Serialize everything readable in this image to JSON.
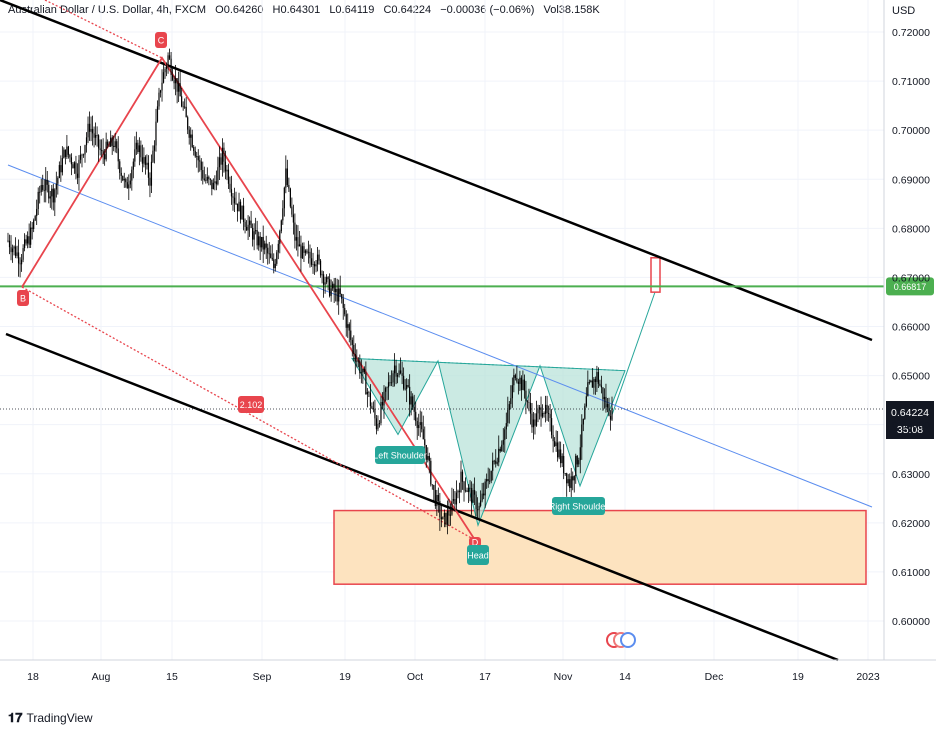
{
  "header": {
    "symbol": "Australian Dollar / U.S. Dollar, 4h, FXCM",
    "open": "O0.64260",
    "high": "H0.64301",
    "low": "L0.64119",
    "close": "C0.64224",
    "change": "−0.00036 (−0.06%)",
    "volume": "Vol38.158K"
  },
  "footer": {
    "brand": "TradingView"
  },
  "colors": {
    "up": "#26a69a",
    "down": "#ef5350",
    "candle": "#000000",
    "channel": "#000000",
    "midline": "#5b8def",
    "abcd": "#e8454d",
    "pattern_fill": "#b9e3da",
    "pattern_stroke": "#26a69a",
    "support_line": "#4caf50",
    "zone_fill": "#fde3bf",
    "zone_stroke": "#e8454d"
  },
  "chart_data": {
    "type": "candlestick",
    "currency": "USD",
    "y_tick_labels": [
      "0.72000",
      "0.71000",
      "0.70000",
      "0.69000",
      "0.68000",
      "0.67000",
      "0.66000",
      "0.65000",
      "0.64000",
      "0.63000",
      "0.62000",
      "0.61000",
      "0.60000"
    ],
    "y_ticks": [
      0.72,
      0.71,
      0.7,
      0.69,
      0.68,
      0.67,
      0.66,
      0.65,
      0.64,
      0.63,
      0.62,
      0.61,
      0.6
    ],
    "x_tick_labels": [
      "18",
      "Aug",
      "15",
      "Sep",
      "19",
      "Oct",
      "17",
      "Nov",
      "14",
      "Dec",
      "19",
      "2023"
    ],
    "last_price": "0.64224",
    "countdown": "35:08",
    "support_price": "0.66817",
    "ratio_label": "2.102",
    "pivot_labels": {
      "b": "B",
      "c": "C",
      "d": "D"
    },
    "pattern_labels": {
      "left": "Left Shoulder",
      "head": "Head",
      "right": "Right Shoulder"
    },
    "price_path": [
      [
        0,
        0.6775
      ],
      [
        8,
        0.674
      ],
      [
        16,
        0.6795
      ],
      [
        22,
        0.689
      ],
      [
        30,
        0.687
      ],
      [
        38,
        0.696
      ],
      [
        46,
        0.692
      ],
      [
        54,
        0.701
      ],
      [
        62,
        0.695
      ],
      [
        70,
        0.6975
      ],
      [
        78,
        0.688
      ],
      [
        86,
        0.697
      ],
      [
        94,
        0.69
      ],
      [
        101,
        0.709
      ],
      [
        106,
        0.715
      ],
      [
        112,
        0.709
      ],
      [
        118,
        0.702
      ],
      [
        124,
        0.696
      ],
      [
        130,
        0.69
      ],
      [
        136,
        0.6885
      ],
      [
        142,
        0.695
      ],
      [
        150,
        0.686
      ],
      [
        158,
        0.681
      ],
      [
        164,
        0.678
      ],
      [
        170,
        0.676
      ],
      [
        176,
        0.672
      ],
      [
        180,
        0.68
      ],
      [
        184,
        0.691
      ],
      [
        190,
        0.678
      ],
      [
        196,
        0.674
      ],
      [
        204,
        0.674
      ],
      [
        212,
        0.668
      ],
      [
        220,
        0.666
      ],
      [
        228,
        0.656
      ],
      [
        236,
        0.649
      ],
      [
        244,
        0.64
      ],
      [
        250,
        0.646
      ],
      [
        256,
        0.652
      ],
      [
        262,
        0.649
      ],
      [
        270,
        0.642
      ],
      [
        276,
        0.636
      ],
      [
        282,
        0.626
      ],
      [
        288,
        0.62
      ],
      [
        294,
        0.623
      ],
      [
        300,
        0.629
      ],
      [
        306,
        0.626
      ],
      [
        312,
        0.623
      ],
      [
        318,
        0.629
      ],
      [
        324,
        0.634
      ],
      [
        330,
        0.64
      ],
      [
        336,
        0.651
      ],
      [
        342,
        0.647
      ],
      [
        348,
        0.64
      ],
      [
        354,
        0.644
      ],
      [
        360,
        0.639
      ],
      [
        366,
        0.633
      ],
      [
        372,
        0.628
      ],
      [
        378,
        0.634
      ],
      [
        384,
        0.647
      ],
      [
        390,
        0.65
      ],
      [
        396,
        0.644
      ],
      [
        400,
        0.6422
      ]
    ]
  }
}
